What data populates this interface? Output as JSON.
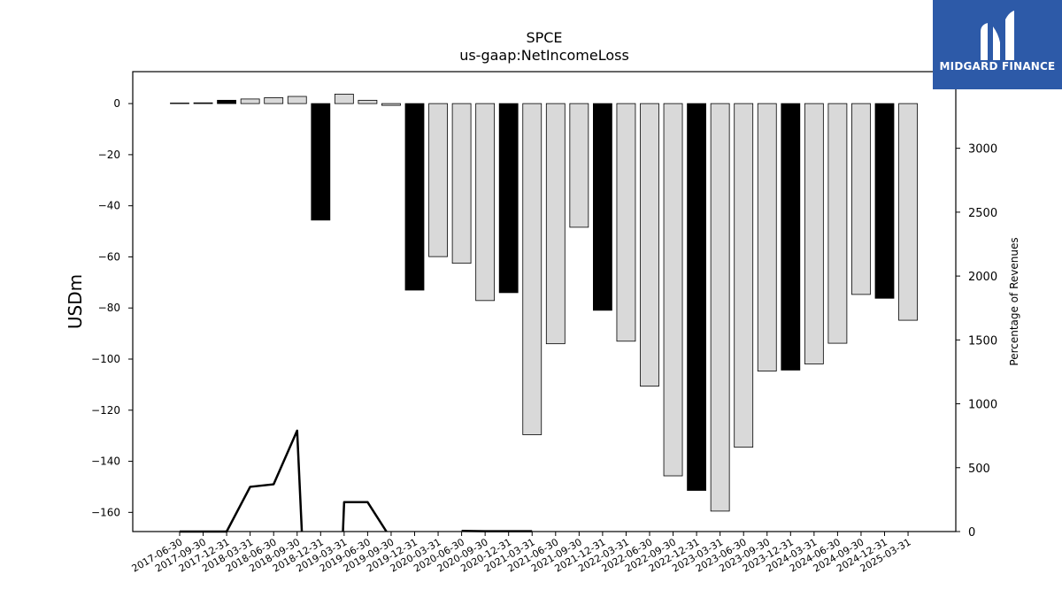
{
  "brand": {
    "name": "MIDGARD FINANCE",
    "bg_color": "#2d5aa8"
  },
  "chart_data": {
    "type": "bar",
    "title": "SPCE",
    "subtitle": "us-gaap:NetIncomeLoss",
    "ylabel": "USDm",
    "y2label": "Percentage of Revenues",
    "ylim": [
      -167.5,
      12.5
    ],
    "y2lim": [
      0,
      3600
    ],
    "yticks": [
      0,
      -20,
      -40,
      -60,
      -80,
      -100,
      -120,
      -140,
      -160
    ],
    "y2ticks": [
      0,
      500,
      1000,
      1500,
      2000,
      2500,
      3000,
      3500
    ],
    "categories": [
      "2017-06-30",
      "2017-09-30",
      "2017-12-31",
      "2018-03-31",
      "2018-06-30",
      "2018-09-30",
      "2018-12-31",
      "2019-03-31",
      "2019-06-30",
      "2019-09-30",
      "2019-12-31",
      "2020-03-31",
      "2020-06-30",
      "2020-09-30",
      "2020-12-31",
      "2021-03-31",
      "2021-06-30",
      "2021-09-30",
      "2021-12-31",
      "2022-03-31",
      "2022-06-30",
      "2022-09-30",
      "2022-12-31",
      "2023-03-31",
      "2023-06-30",
      "2023-09-30",
      "2023-12-31",
      "2024-03-31",
      "2024-06-30",
      "2024-09-30",
      "2024-12-31",
      "2025-03-31"
    ],
    "series": [
      {
        "type": "bar",
        "values": [
          0.2,
          0.3,
          1.3,
          1.8,
          2.3,
          2.8,
          -45.6,
          3.7,
          1.3,
          -0.7,
          -73.0,
          -59.9,
          -62.5,
          -77.1,
          -74.0,
          -129.6,
          -94.0,
          -48.4,
          -80.9,
          -93.0,
          -110.6,
          -145.7,
          -151.4,
          -159.5,
          -134.5,
          -104.7,
          -104.3,
          -101.9,
          -93.8,
          -74.7,
          -76.2,
          -84.8
        ],
        "highlight": [
          false,
          false,
          true,
          false,
          false,
          false,
          true,
          false,
          false,
          false,
          true,
          false,
          false,
          false,
          true,
          false,
          false,
          false,
          true,
          false,
          false,
          false,
          true,
          false,
          false,
          false,
          true,
          false,
          false,
          false,
          true,
          false
        ],
        "colors": {
          "normal": "#d9d9d9",
          "highlight": "#000000",
          "edge": "#000000"
        }
      },
      {
        "type": "line",
        "axis": "right",
        "color": "#000000",
        "points": [
          [
            0,
            0
          ],
          [
            1,
            0
          ],
          [
            2,
            0
          ],
          [
            3,
            350
          ],
          [
            4,
            370
          ],
          [
            5,
            790
          ],
          [
            5.2,
            0
          ],
          null,
          [
            6.95,
            0
          ],
          [
            7,
            230
          ],
          [
            8,
            230
          ],
          [
            8.8,
            0
          ],
          null,
          [
            12,
            5
          ],
          [
            13,
            3
          ],
          [
            14,
            3
          ],
          [
            15,
            3
          ]
        ]
      }
    ]
  }
}
